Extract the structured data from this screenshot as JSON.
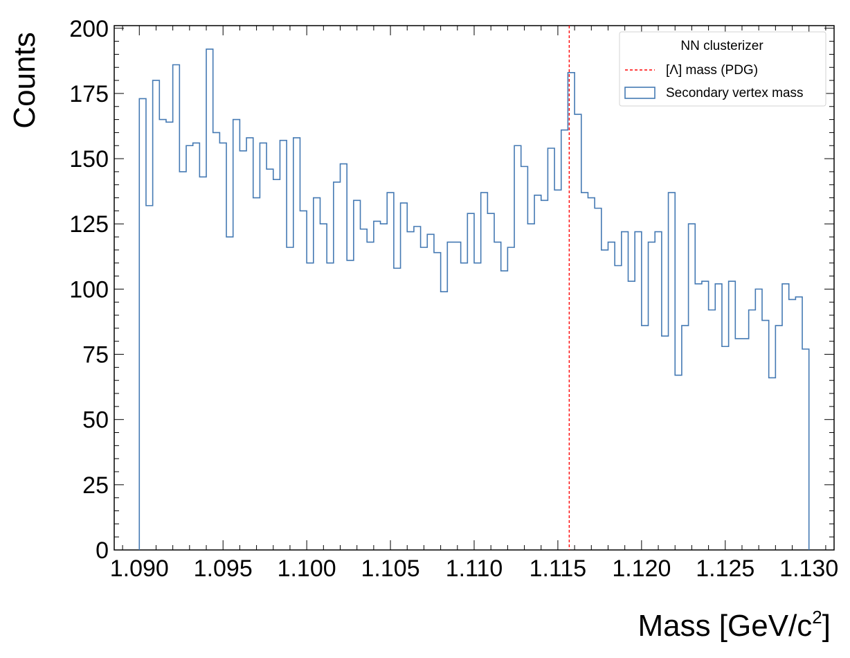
{
  "chart_data": {
    "type": "histogram",
    "xlabel_main": "Mass [GeV/c",
    "xlabel_sup": "2",
    "xlabel_end": "]",
    "ylabel": "Counts",
    "xlim": [
      1.0885,
      1.1315
    ],
    "ylim": [
      0,
      201
    ],
    "x_ticks": [
      "1.090",
      "1.095",
      "1.100",
      "1.105",
      "1.110",
      "1.115",
      "1.120",
      "1.125",
      "1.130"
    ],
    "y_ticks": [
      "0",
      "25",
      "50",
      "75",
      "100",
      "125",
      "150",
      "175",
      "200"
    ],
    "bin_start": 1.09,
    "bin_end": 1.13,
    "bins": 100,
    "counts": [
      173,
      132,
      180,
      165,
      164,
      186,
      145,
      155,
      156,
      143,
      192,
      160,
      156,
      120,
      165,
      153,
      158,
      135,
      156,
      146,
      142,
      157,
      116,
      158,
      130,
      110,
      135,
      125,
      110,
      141,
      148,
      111,
      134,
      123,
      118,
      126,
      125,
      137,
      108,
      133,
      122,
      124,
      116,
      121,
      114,
      99,
      118,
      118,
      110,
      129,
      110,
      137,
      129,
      118,
      107,
      116,
      155,
      147,
      125,
      136,
      134,
      154,
      138,
      161,
      183,
      167,
      137,
      135,
      131,
      115,
      118,
      109,
      122,
      103,
      122,
      86,
      118,
      122,
      82,
      137,
      67,
      86,
      125,
      102,
      103,
      92,
      102,
      78,
      103,
      81,
      81,
      92,
      100,
      88,
      66,
      86,
      102,
      96,
      97,
      77
    ],
    "reference_line": {
      "x": 1.11568,
      "color": "#ff0000",
      "style": "dashed"
    },
    "series_color": "#4479b3",
    "legend": {
      "position": "top-right",
      "title": "NN clusterizer",
      "entries": [
        "[Λ] mass (PDG)",
        "Secondary vertex mass"
      ]
    },
    "grid": false
  }
}
